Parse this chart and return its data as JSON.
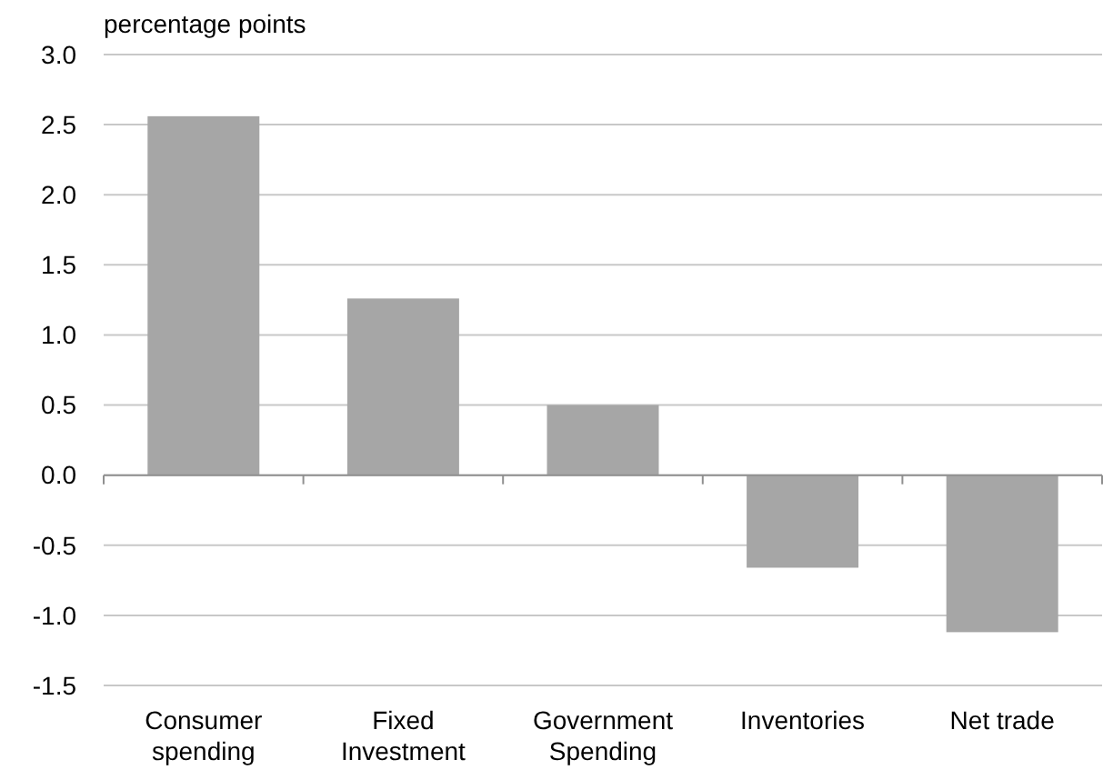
{
  "chart_data": {
    "type": "bar",
    "ylabel": "percentage points",
    "categories": [
      "Consumer spending",
      "Fixed Investment",
      "Government Spending",
      "Inventories",
      "Net trade"
    ],
    "values": [
      2.56,
      1.26,
      0.5,
      -0.66,
      -1.12
    ],
    "color": "#a6a6a6",
    "ylim": [
      -1.5,
      3.0
    ],
    "yticks": [
      {
        "value": -1.5,
        "label": "-1.5"
      },
      {
        "value": -1,
        "label": "-1.0"
      },
      {
        "value": -0.5,
        "label": "-0.5"
      },
      {
        "value": 0,
        "label": "0.0"
      },
      {
        "value": 0.5,
        "label": "0.5"
      },
      {
        "value": 1,
        "label": "1.0"
      },
      {
        "value": 1.5,
        "label": "1.5"
      },
      {
        "value": 2,
        "label": "2.0"
      },
      {
        "value": 2.5,
        "label": "2.5"
      },
      {
        "value": 3,
        "label": "3.0"
      }
    ],
    "grid": "y"
  }
}
